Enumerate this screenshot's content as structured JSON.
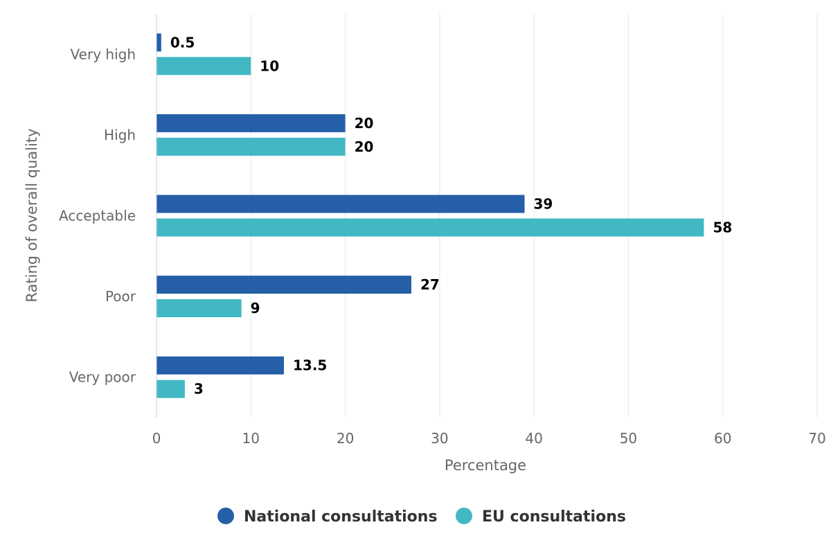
{
  "chart_data": {
    "type": "bar",
    "orientation": "horizontal",
    "categories": [
      "Very high",
      "High",
      "Acceptable",
      "Poor",
      "Very poor"
    ],
    "series": [
      {
        "name": "National consultations",
        "color": "#245fa8",
        "values": [
          0.5,
          20,
          39,
          27,
          13.5
        ]
      },
      {
        "name": "EU consultations",
        "color": "#41b8c4",
        "values": [
          10,
          20,
          58,
          9,
          3
        ]
      }
    ],
    "xlabel": "Percentage",
    "ylabel": "Rating of overall quality",
    "xlim": [
      0,
      70
    ],
    "xticks": [
      0,
      10,
      20,
      30,
      40,
      50,
      60,
      70
    ],
    "grid": true,
    "legend": "bottom-center",
    "data_labels": true
  }
}
